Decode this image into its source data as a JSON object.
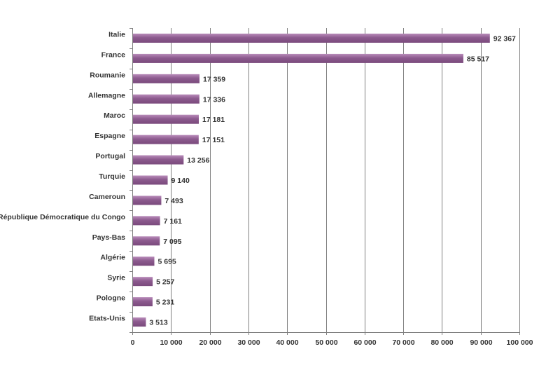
{
  "chart_data": {
    "type": "bar",
    "orientation": "horizontal",
    "categories": [
      "Italie",
      "France",
      "Roumanie",
      "Allemagne",
      "Maroc",
      "Espagne",
      "Portugal",
      "Turquie",
      "Cameroun",
      "La République Démocratique du Congo",
      "Pays-Bas",
      "Algérie",
      "Syrie",
      "Pologne",
      "Etats-Unis"
    ],
    "values": [
      92367,
      85517,
      17359,
      17336,
      17181,
      17151,
      13256,
      9140,
      7493,
      7161,
      7095,
      5695,
      5257,
      5231,
      3513
    ],
    "value_labels": [
      "92 367",
      "85 517",
      "17 359",
      "17 336",
      "17 181",
      "17 151",
      "13 256",
      "9 140",
      "7 493",
      "7 161",
      "7 095",
      "5 695",
      "5 257",
      "5 231",
      "3 513"
    ],
    "xlim": [
      0,
      100000
    ],
    "x_ticks": [
      0,
      10000,
      20000,
      30000,
      40000,
      50000,
      60000,
      70000,
      80000,
      90000,
      100000
    ],
    "x_tick_labels": [
      "0",
      "10 000",
      "20 000",
      "30 000",
      "40 000",
      "50 000",
      "60 000",
      "70 000",
      "80 000",
      "90 000",
      "100 000"
    ],
    "grid": "vertical",
    "legend": "none",
    "colors": {
      "bar": "#8c5a8e",
      "bar_highlight": "#b98cba",
      "grid": "#7f7f7f",
      "axis": "#7f7f7f"
    }
  }
}
